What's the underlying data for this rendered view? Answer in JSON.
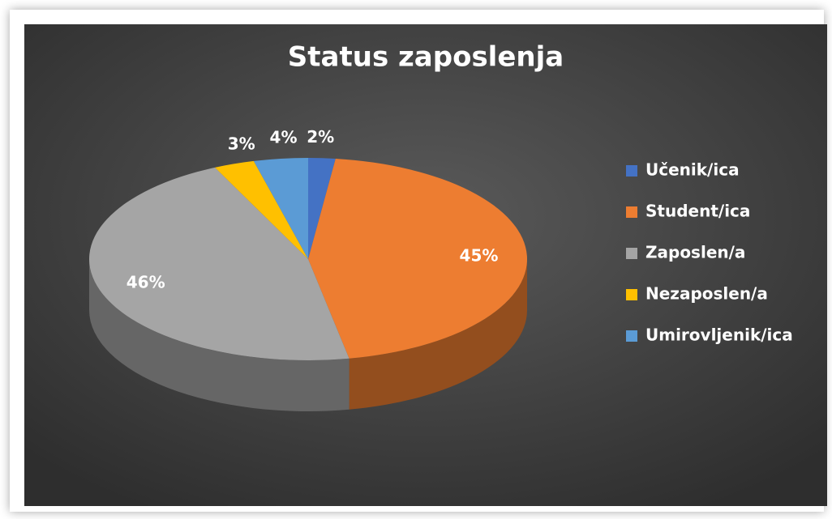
{
  "chart_data": {
    "type": "pie",
    "title": "Status zaposlenja",
    "categories": [
      "Učenik/ica",
      "Student/ica",
      "Zaposlen/a",
      "Nezaposlen/a",
      "Umirovljenik/ica"
    ],
    "values": [
      2,
      45,
      46,
      3,
      4
    ],
    "value_labels": [
      "2%",
      "45%",
      "46%",
      "3%",
      "4%"
    ],
    "colors": [
      "#4472c4",
      "#ed7d31",
      "#a5a5a5",
      "#ffc000",
      "#5b9bd5"
    ],
    "legend": "right"
  }
}
